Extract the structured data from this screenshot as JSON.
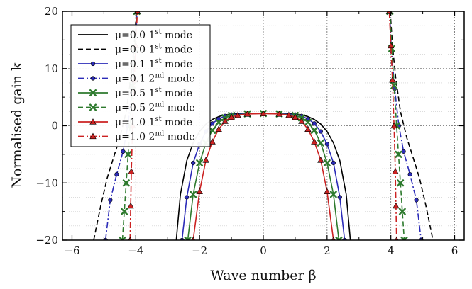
{
  "chart_data": {
    "type": "line",
    "xlabel": "Wave number β",
    "ylabel": "Normalised gain k",
    "xlim": [
      -6.3,
      6.3
    ],
    "ylim": [
      -20,
      20
    ],
    "x_ticks": [
      -6,
      -4,
      -2,
      0,
      2,
      4,
      6
    ],
    "x_tick_labels": [
      "−6",
      "−4",
      "−2",
      "0",
      "2",
      "4",
      "6"
    ],
    "y_ticks": [
      -20,
      -10,
      0,
      10,
      20
    ],
    "y_tick_labels": [
      "−20",
      "−10",
      "0",
      "10",
      "20"
    ],
    "grid": true,
    "legend_position": "top-left",
    "series": [
      {
        "name": "μ=0.0 1st mode",
        "label_main": "μ=0.0 1",
        "label_sup": "st",
        "label_tail": " mode",
        "color": "#000000",
        "dash": "solid",
        "marker": "none",
        "segments": [
          [
            [
              -2.73,
              -20
            ],
            [
              -2.6,
              -12
            ],
            [
              -2.4,
              -6.1
            ],
            [
              -2.2,
              -3.0
            ],
            [
              -2.0,
              -1.0
            ],
            [
              -1.8,
              0.3
            ],
            [
              -1.6,
              1.1
            ],
            [
              -1.4,
              1.6
            ],
            [
              -1.2,
              1.9
            ],
            [
              -1.0,
              2.05
            ],
            [
              -0.5,
              2.15
            ],
            [
              0,
              2.2
            ],
            [
              0.5,
              2.15
            ],
            [
              1.0,
              2.05
            ],
            [
              1.2,
              1.9
            ],
            [
              1.4,
              1.6
            ],
            [
              1.6,
              1.1
            ],
            [
              1.8,
              0.3
            ],
            [
              2.0,
              -1.0
            ],
            [
              2.2,
              -3.0
            ],
            [
              2.4,
              -6.1
            ],
            [
              2.6,
              -12
            ],
            [
              2.73,
              -20
            ]
          ]
        ]
      },
      {
        "name": "μ=0.0 1st mode",
        "label_main": "μ=0.0 1",
        "label_sup": "st",
        "label_tail": " mode",
        "color": "#000000",
        "dash": "dash",
        "marker": "none",
        "segments": [
          [
            [
              -5.32,
              -20
            ],
            [
              -5.1,
              -14
            ],
            [
              -4.9,
              -9.2
            ],
            [
              -4.7,
              -5.6
            ],
            [
              -4.5,
              -2.1
            ],
            [
              -4.3,
              2.5
            ],
            [
              -4.15,
              8.5
            ],
            [
              -4.05,
              14
            ],
            [
              -3.98,
              20
            ]
          ],
          [
            [
              3.98,
              20
            ],
            [
              4.05,
              14
            ],
            [
              4.15,
              8.5
            ],
            [
              4.3,
              2.5
            ],
            [
              4.5,
              -2.1
            ],
            [
              4.7,
              -5.6
            ],
            [
              4.9,
              -9.2
            ],
            [
              5.1,
              -14
            ],
            [
              5.32,
              -20
            ]
          ]
        ]
      },
      {
        "name": "μ=0.1 1st mode",
        "label_main": "μ=0.1 1",
        "label_sup": "st",
        "label_tail": " mode",
        "color": "#2b2bb8",
        "dash": "solid",
        "marker": "circle",
        "segments": [
          [
            [
              -2.55,
              -20
            ],
            [
              -2.4,
              -12.5
            ],
            [
              -2.2,
              -6.5
            ],
            [
              -2.0,
              -3.2
            ],
            [
              -1.8,
              -1.0
            ],
            [
              -1.6,
              0.4
            ],
            [
              -1.4,
              1.2
            ],
            [
              -1.2,
              1.7
            ],
            [
              -1.0,
              1.95
            ],
            [
              -0.5,
              2.12
            ],
            [
              0,
              2.18
            ],
            [
              0.5,
              2.12
            ],
            [
              1.0,
              1.95
            ],
            [
              1.2,
              1.7
            ],
            [
              1.4,
              1.2
            ],
            [
              1.6,
              0.4
            ],
            [
              1.8,
              -1.0
            ],
            [
              2.0,
              -3.2
            ],
            [
              2.2,
              -6.5
            ],
            [
              2.4,
              -12.5
            ],
            [
              2.55,
              -20
            ]
          ]
        ]
      },
      {
        "name": "μ=0.1 2nd mode",
        "label_main": "μ=0.1 2",
        "label_sup": "nd",
        "label_tail": " mode",
        "color": "#2b2bb8",
        "dash": "dashdot",
        "marker": "circle",
        "segments": [
          [
            [
              -4.95,
              -20
            ],
            [
              -4.8,
              -13
            ],
            [
              -4.6,
              -8.5
            ],
            [
              -4.4,
              -4.5
            ],
            [
              -4.25,
              0
            ],
            [
              -4.12,
              6.5
            ],
            [
              -4.02,
              13
            ],
            [
              -3.96,
              20
            ]
          ],
          [
            [
              3.96,
              20
            ],
            [
              4.02,
              13
            ],
            [
              4.12,
              6.5
            ],
            [
              4.25,
              0
            ],
            [
              4.4,
              -4.5
            ],
            [
              4.6,
              -8.5
            ],
            [
              4.8,
              -13
            ],
            [
              4.95,
              -20
            ]
          ]
        ]
      },
      {
        "name": "μ=0.5 1st mode",
        "label_main": "μ=0.5 1",
        "label_sup": "st",
        "label_tail": " mode",
        "color": "#2d7a2d",
        "dash": "solid",
        "marker": "x",
        "segments": [
          [
            [
              -2.37,
              -20
            ],
            [
              -2.2,
              -12
            ],
            [
              -2.0,
              -6.5
            ],
            [
              -1.8,
              -3.0
            ],
            [
              -1.6,
              -0.8
            ],
            [
              -1.4,
              0.6
            ],
            [
              -1.2,
              1.4
            ],
            [
              -1.0,
              1.8
            ],
            [
              -0.5,
              2.08
            ],
            [
              0,
              2.15
            ],
            [
              0.5,
              2.08
            ],
            [
              1.0,
              1.8
            ],
            [
              1.2,
              1.4
            ],
            [
              1.4,
              0.6
            ],
            [
              1.6,
              -0.8
            ],
            [
              1.8,
              -3.0
            ],
            [
              2.0,
              -6.5
            ],
            [
              2.2,
              -12
            ],
            [
              2.37,
              -20
            ]
          ]
        ]
      },
      {
        "name": "μ=0.5 2nd mode",
        "label_main": "μ=0.5 2",
        "label_sup": "nd",
        "label_tail": " mode",
        "color": "#2d7a2d",
        "dash": "dash",
        "marker": "x",
        "segments": [
          [
            [
              -4.42,
              -20
            ],
            [
              -4.36,
              -15
            ],
            [
              -4.3,
              -10
            ],
            [
              -4.24,
              -5
            ],
            [
              -4.18,
              0
            ],
            [
              -4.1,
              7
            ],
            [
              -4.03,
              13.5
            ],
            [
              -3.97,
              20
            ]
          ],
          [
            [
              3.97,
              20
            ],
            [
              4.03,
              13.5
            ],
            [
              4.1,
              7
            ],
            [
              4.18,
              0
            ],
            [
              4.24,
              -5
            ],
            [
              4.3,
              -10
            ],
            [
              4.36,
              -15
            ],
            [
              4.42,
              -20
            ]
          ]
        ]
      },
      {
        "name": "μ=1.0 1st mode",
        "label_main": "μ=1.0 1",
        "label_sup": "st",
        "label_tail": " mode",
        "color": "#cc2222",
        "dash": "solid",
        "marker": "triangle",
        "segments": [
          [
            [
              -2.2,
              -20
            ],
            [
              -2.0,
              -11.5
            ],
            [
              -1.8,
              -6.0
            ],
            [
              -1.6,
              -2.8
            ],
            [
              -1.4,
              -0.6
            ],
            [
              -1.2,
              0.8
            ],
            [
              -1.0,
              1.5
            ],
            [
              -0.8,
              1.85
            ],
            [
              -0.5,
              2.05
            ],
            [
              0,
              2.12
            ],
            [
              0.5,
              2.05
            ],
            [
              0.8,
              1.85
            ],
            [
              1.0,
              1.5
            ],
            [
              1.2,
              0.8
            ],
            [
              1.4,
              -0.6
            ],
            [
              1.6,
              -2.8
            ],
            [
              1.8,
              -6.0
            ],
            [
              2.0,
              -11.5
            ],
            [
              2.2,
              -20
            ]
          ]
        ]
      },
      {
        "name": "μ=1.0 2nd mode",
        "label_main": "μ=1.0 2",
        "label_sup": "nd",
        "label_tail": " mode",
        "color": "#cc2222",
        "dash": "dashdot",
        "marker": "triangle",
        "segments": [
          [
            [
              -4.18,
              -20
            ],
            [
              -4.16,
              -14
            ],
            [
              -4.14,
              -8
            ],
            [
              -4.1,
              0
            ],
            [
              -4.05,
              8
            ],
            [
              -4.0,
              14
            ],
            [
              -3.95,
              20
            ]
          ],
          [
            [
              3.95,
              20
            ],
            [
              4.0,
              14
            ],
            [
              4.05,
              8
            ],
            [
              4.1,
              0
            ],
            [
              4.14,
              -8
            ],
            [
              4.16,
              -14
            ],
            [
              4.18,
              -20
            ]
          ]
        ]
      }
    ]
  }
}
